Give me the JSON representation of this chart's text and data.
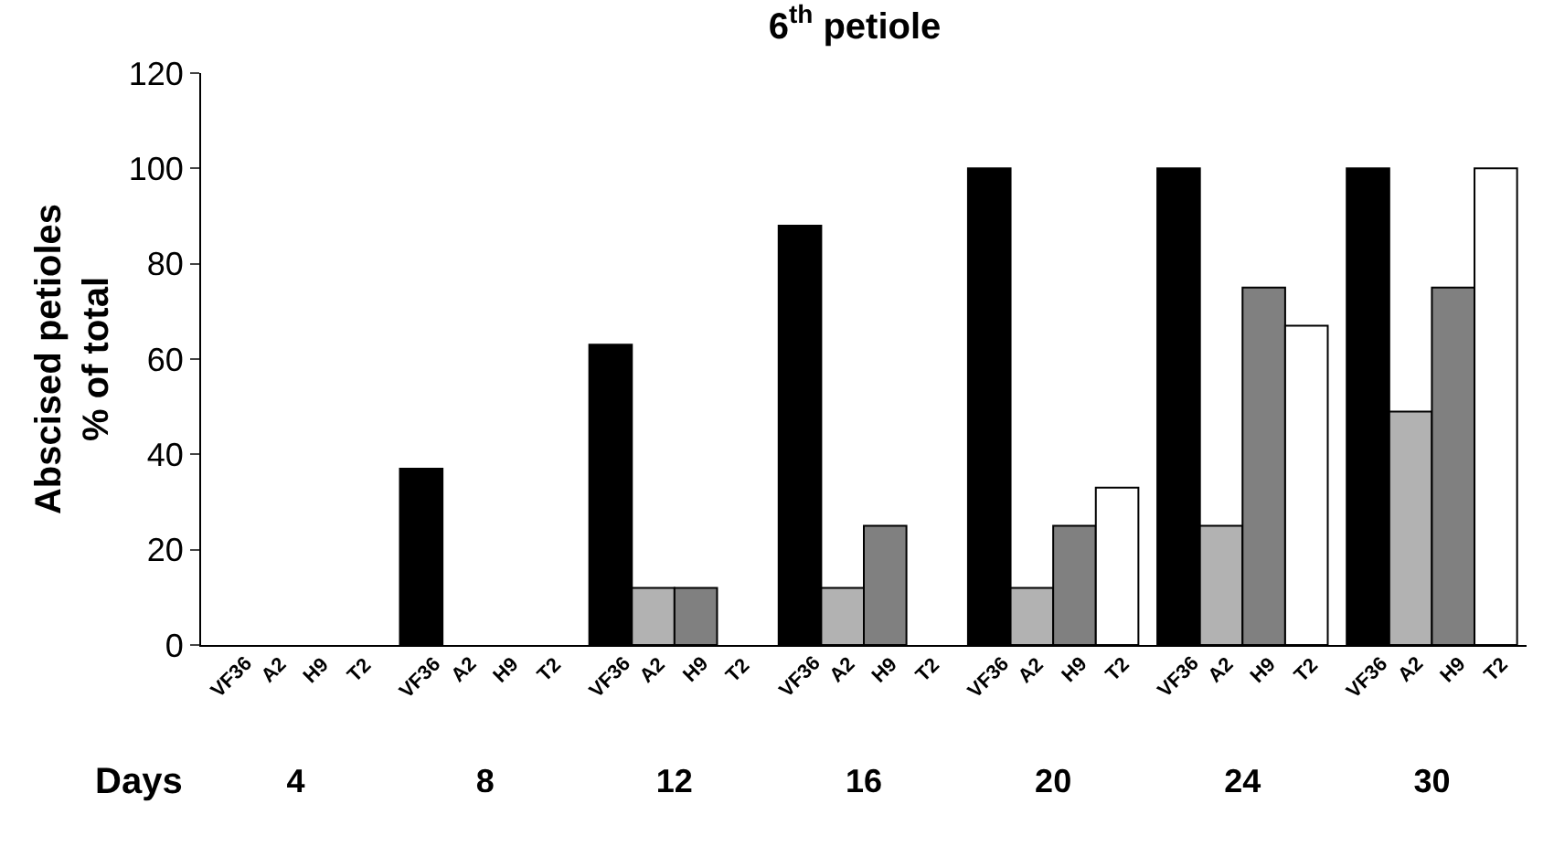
{
  "chart_data": {
    "type": "bar",
    "title": "6$^{th}$ petiole",
    "ylabel": "Abscised petioles\n% of total",
    "xlabel": "Days",
    "categories": [
      "4",
      "8",
      "12",
      "16",
      "20",
      "24",
      "30"
    ],
    "series": [
      {
        "name": "VF36",
        "color": "#000000",
        "values": [
          0,
          37,
          63,
          88,
          100,
          100,
          100
        ]
      },
      {
        "name": "A2",
        "color": "#b2b2b2",
        "values": [
          0,
          0,
          12,
          12,
          12,
          25,
          49
        ]
      },
      {
        "name": "H9",
        "color": "#808080",
        "values": [
          0,
          0,
          12,
          25,
          25,
          75,
          75
        ]
      },
      {
        "name": "T2",
        "color": "#ffffff",
        "values": [
          0,
          0,
          0,
          0,
          33,
          67,
          100
        ]
      }
    ],
    "ylim": [
      0,
      120
    ],
    "yticks": [
      0,
      20,
      40,
      60,
      80,
      100,
      120
    ],
    "legend": false
  }
}
